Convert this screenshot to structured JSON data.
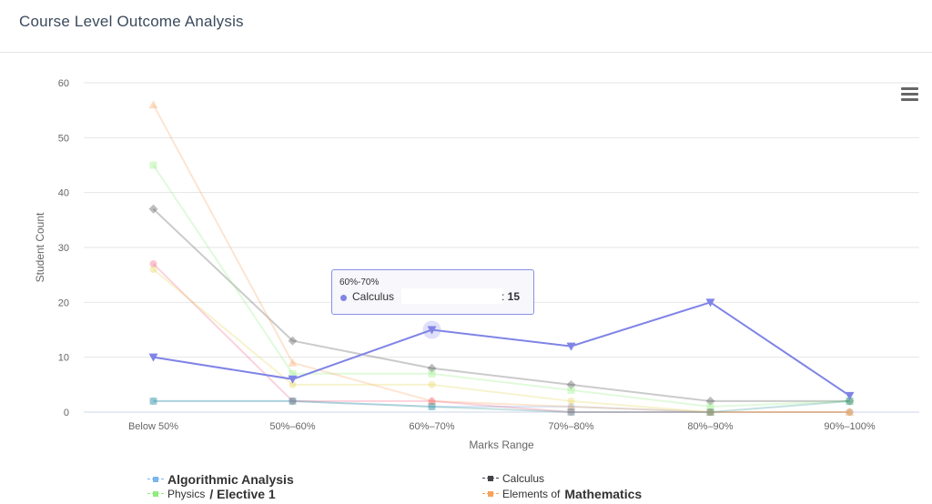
{
  "header": {
    "title": "Course Level Outcome Analysis"
  },
  "chart_data": {
    "type": "line",
    "categories": [
      "Below 50%",
      "50%-60%",
      "60%-70%",
      "70%-80%",
      "80%-90%",
      "90%-100%"
    ],
    "xlabel": "Marks Range",
    "ylabel": "Student Count",
    "ylim": [
      0,
      60
    ],
    "yticks": [
      0,
      10,
      20,
      30,
      40,
      50,
      60
    ],
    "grid": true,
    "legend_position": "bottom",
    "series": [
      {
        "name": "Algorithmic Analysis",
        "color": "#7cb5ec",
        "marker": "circle",
        "values": [
          2,
          2,
          1,
          1,
          0,
          0
        ],
        "faded": true
      },
      {
        "name": "Calculus",
        "color": "#434348",
        "marker": "diamond",
        "values": [
          37,
          13,
          8,
          5,
          2,
          2
        ],
        "faded": true
      },
      {
        "name": "Physics / Elective 1",
        "color": "#90ed7d",
        "marker": "square",
        "values": [
          45,
          7,
          7,
          4,
          1,
          2
        ],
        "faded": true
      },
      {
        "name": "Elements of Mathematics",
        "color": "#f7a35c",
        "marker": "triangle",
        "values": [
          56,
          9,
          2,
          1,
          0,
          0
        ],
        "faded": true
      },
      {
        "name": "",
        "color": "#f15c80",
        "marker": "circle",
        "values": [
          27,
          2,
          2,
          0,
          0,
          0
        ],
        "faded": true
      },
      {
        "name": "",
        "color": "#e4d354",
        "marker": "circle",
        "values": [
          26,
          5,
          5,
          2,
          0,
          0
        ],
        "faded": true
      },
      {
        "name": "",
        "color": "#2b908f",
        "marker": "square",
        "values": [
          2,
          2,
          1,
          0,
          0,
          2
        ],
        "faded": true
      },
      {
        "name": "Calculus",
        "color": "#7f84e6",
        "marker": "triangle-down",
        "values": [
          10,
          6,
          15,
          12,
          20,
          3
        ],
        "faded": false
      }
    ],
    "tooltip": {
      "category": "60%-70%",
      "series": "Calculus",
      "value": "15"
    }
  },
  "legend": {
    "items": [
      {
        "label_a": "Algorithmic Analysis",
        "label_b": "",
        "color": "#7cb5ec"
      },
      {
        "label_a": "Calculus",
        "label_b": "",
        "color": "#434348"
      },
      {
        "label_a": "Physics",
        "label_b": "/ Elective 1",
        "color": "#90ed7d"
      },
      {
        "label_a": "Elements of",
        "label_b": "Mathematics",
        "color": "#f7a35c"
      }
    ]
  }
}
